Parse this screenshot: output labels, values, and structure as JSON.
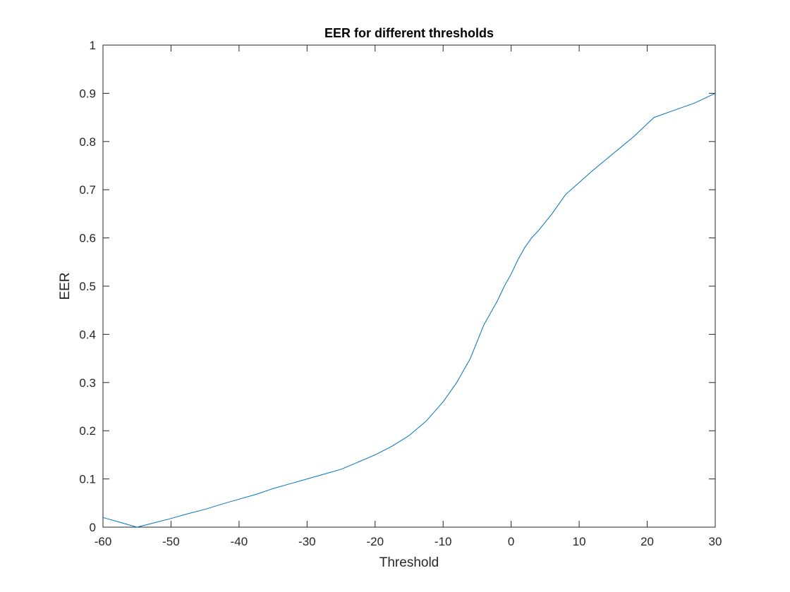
{
  "chart_data": {
    "type": "line",
    "title": "EER for different thresholds",
    "xlabel": "Threshold",
    "ylabel": "EER",
    "xlim": [
      -60,
      30
    ],
    "ylim": [
      0,
      1
    ],
    "xticks": [
      -60,
      -50,
      -40,
      -30,
      -20,
      -10,
      0,
      10,
      20,
      30
    ],
    "yticks": [
      0,
      0.1,
      0.2,
      0.3,
      0.4,
      0.5,
      0.6,
      0.7,
      0.8,
      0.9,
      1
    ],
    "xtick_labels": [
      "-60",
      "-50",
      "-40",
      "-30",
      "-20",
      "-10",
      "0",
      "10",
      "20",
      "30"
    ],
    "ytick_labels": [
      "0",
      "0.1",
      "0.2",
      "0.3",
      "0.4",
      "0.5",
      "0.6",
      "0.7",
      "0.8",
      "0.9",
      "1"
    ],
    "grid": false,
    "box": true,
    "series": [
      {
        "color": "#0072BD",
        "x": [
          -60,
          -57.5,
          -55,
          -52.5,
          -50,
          -47.5,
          -45,
          -42.5,
          -40,
          -37.5,
          -35,
          -32.5,
          -30,
          -27.5,
          -25,
          -22.5,
          -20,
          -17.5,
          -15,
          -12.5,
          -10,
          -8,
          -6,
          -4,
          -3,
          -2,
          -1,
          0,
          1,
          2,
          3,
          4,
          6,
          8,
          10,
          12,
          15,
          18,
          21,
          24,
          27,
          30
        ],
        "y": [
          0.02,
          0.01,
          0.0,
          0.009,
          0.018,
          0.028,
          0.037,
          0.048,
          0.058,
          0.068,
          0.08,
          0.09,
          0.1,
          0.11,
          0.12,
          0.135,
          0.15,
          0.168,
          0.19,
          0.22,
          0.26,
          0.3,
          0.35,
          0.42,
          0.445,
          0.47,
          0.5,
          0.525,
          0.555,
          0.58,
          0.6,
          0.615,
          0.65,
          0.69,
          0.715,
          0.74,
          0.775,
          0.81,
          0.85,
          0.865,
          0.88,
          0.9
        ]
      }
    ]
  },
  "colors": {
    "line": "#0072BD",
    "axes": "#262626",
    "background": "#ffffff"
  }
}
